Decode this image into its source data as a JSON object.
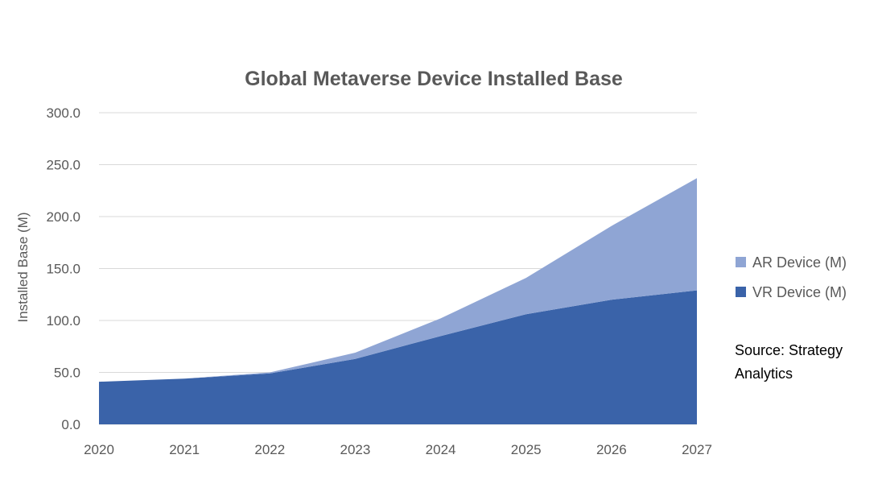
{
  "chart_data": {
    "type": "area",
    "stacked": true,
    "title": "Global Metaverse Device Installed Base",
    "ylabel": "Installed Base (M)",
    "xlabel": "",
    "x": [
      "2020",
      "2021",
      "2022",
      "2023",
      "2024",
      "2025",
      "2026",
      "2027"
    ],
    "ylim": [
      0,
      300
    ],
    "yticks": [
      "0.0",
      "50.0",
      "100.0",
      "150.0",
      "200.0",
      "250.0",
      "300.0"
    ],
    "grid": true,
    "legend_position": "right",
    "series": [
      {
        "name": "VR Device (M)",
        "values": [
          41,
          44,
          49,
          63,
          85,
          106,
          120,
          129
        ],
        "color": "#3a63a9"
      },
      {
        "name": "AR Device (M)",
        "values": [
          0,
          0,
          1,
          6,
          17,
          35,
          71,
          108
        ],
        "color": "#8fa5d4"
      }
    ],
    "legend_order": [
      "AR Device (M)",
      "VR Device (M)"
    ],
    "annotation": [
      "Source: Strategy",
      "Analytics"
    ]
  }
}
